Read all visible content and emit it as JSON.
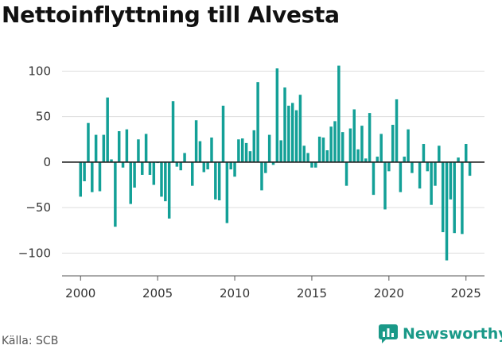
{
  "title": "Nettoinflyttning till Alvesta",
  "source": "Källa: SCB",
  "brand": {
    "name": "Newsworthy",
    "icon": "chart-speech-bubble-icon",
    "color": "#1a9988"
  },
  "chart_data": {
    "type": "bar",
    "title": "Nettoinflyttning till Alvesta",
    "xlabel": "",
    "ylabel": "",
    "bar_color": "#13a097",
    "zero_line": true,
    "grid": "horizontal",
    "ylim": [
      -125,
      110
    ],
    "xlim": [
      1998.8,
      2026.2
    ],
    "y_ticks": [
      100,
      50,
      0,
      -50,
      -100
    ],
    "y_tick_labels": [
      "100",
      "50",
      "0",
      "−50",
      "−100"
    ],
    "x_ticks": [
      2000,
      2005,
      2010,
      2015,
      2020,
      2025
    ],
    "x_tick_labels": [
      "2000",
      "2005",
      "2010",
      "2015",
      "2020",
      "2025"
    ],
    "x_unit": "quarter",
    "x": [
      2000.0,
      2000.25,
      2000.5,
      2000.75,
      2001.0,
      2001.25,
      2001.5,
      2001.75,
      2002.0,
      2002.25,
      2002.5,
      2002.75,
      2003.0,
      2003.25,
      2003.5,
      2003.75,
      2004.0,
      2004.25,
      2004.5,
      2004.75,
      2005.0,
      2005.25,
      2005.5,
      2005.75,
      2006.0,
      2006.25,
      2006.5,
      2006.75,
      2007.0,
      2007.25,
      2007.5,
      2007.75,
      2008.0,
      2008.25,
      2008.5,
      2008.75,
      2009.0,
      2009.25,
      2009.5,
      2009.75,
      2010.0,
      2010.25,
      2010.5,
      2010.75,
      2011.0,
      2011.25,
      2011.5,
      2011.75,
      2012.0,
      2012.25,
      2012.5,
      2012.75,
      2013.0,
      2013.25,
      2013.5,
      2013.75,
      2014.0,
      2014.25,
      2014.5,
      2014.75,
      2015.0,
      2015.25,
      2015.5,
      2015.75,
      2016.0,
      2016.25,
      2016.5,
      2016.75,
      2017.0,
      2017.25,
      2017.5,
      2017.75,
      2018.0,
      2018.25,
      2018.5,
      2018.75,
      2019.0,
      2019.25,
      2019.5,
      2019.75,
      2020.0,
      2020.25,
      2020.5,
      2020.75,
      2021.0,
      2021.25,
      2021.5,
      2021.75,
      2022.0,
      2022.25,
      2022.5,
      2022.75,
      2023.0,
      2023.25,
      2023.5,
      2023.75,
      2024.0,
      2024.25,
      2024.5,
      2024.75,
      2025.0,
      2025.25
    ],
    "values": [
      -38,
      -21,
      43,
      -33,
      30,
      -32,
      30,
      71,
      3,
      -71,
      34,
      -6,
      36,
      -46,
      -28,
      25,
      -14,
      31,
      -14,
      -25,
      -1,
      -38,
      -43,
      -62,
      67,
      -5,
      -9,
      10,
      0,
      -26,
      46,
      23,
      -11,
      -8,
      27,
      -41,
      -42,
      62,
      -67,
      -8,
      -16,
      25,
      26,
      21,
      12,
      35,
      88,
      -31,
      -12,
      30,
      -3,
      103,
      24,
      82,
      62,
      65,
      57,
      74,
      18,
      10,
      -6,
      -6,
      28,
      27,
      13,
      39,
      45,
      106,
      33,
      -26,
      37,
      58,
      14,
      40,
      4,
      54,
      -36,
      6,
      31,
      -52,
      -10,
      41,
      69,
      -33,
      6,
      36,
      -12,
      0,
      -29,
      20,
      -10,
      -47,
      -26,
      18,
      -77,
      -108,
      -41,
      -78,
      5,
      -79,
      20,
      -15
    ]
  }
}
